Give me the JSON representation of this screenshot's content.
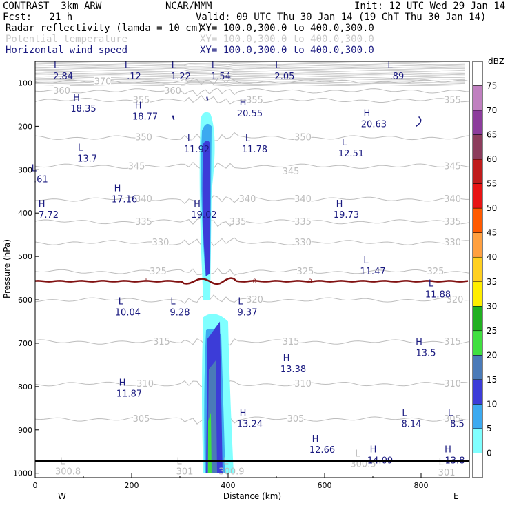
{
  "header": {
    "experiment": "CONTRAST  3km ARW",
    "center": "NCAR/MMM",
    "init": "Init: 12 UTC Wed 29 Jan 14",
    "fcst": "Fcst:   21 h",
    "valid": "Valid: 09 UTC Thu 30 Jan 14 (19 ChT Thu 30 Jan 14)",
    "fields": [
      {
        "name": "Radar reflectivity (lamda = 10 cm)",
        "xy": "XY= 100.0,300.0 to 400.0,300.0",
        "color": "#000000"
      },
      {
        "name": "Potential temperature",
        "xy": "XY= 100.0,300.0 to 400.0,300.0",
        "color": "#c8c8c8"
      },
      {
        "name": "Horizontal wind speed",
        "xy": "XY= 100.0,300.0 to 400.0,300.0",
        "color": "#1a1a80"
      }
    ]
  },
  "chart_data": {
    "type": "cross-section",
    "xlabel": "Distance (km)",
    "ylabel": "Pressure (hPa)",
    "xlim": [
      0,
      900
    ],
    "ylim": [
      1010,
      50
    ],
    "x_ticks": [
      "0",
      "200",
      "400",
      "600",
      "800"
    ],
    "y_ticks": [
      "100",
      "200",
      "300",
      "400",
      "500",
      "600",
      "700",
      "800",
      "900",
      "1000"
    ],
    "x_ends": {
      "left": "W",
      "right": "E"
    },
    "colorbar": {
      "unit": "dBZ",
      "levels": [
        "75",
        "70",
        "65",
        "60",
        "55",
        "50",
        "45",
        "40",
        "35",
        "30",
        "25",
        "20",
        "15",
        "10",
        "5",
        "0"
      ],
      "colors": [
        "#ffffff",
        "#c080c0",
        "#8c3c9c",
        "#8c3c5c",
        "#c01c1c",
        "#e81414",
        "#ff5a00",
        "#ffa040",
        "#ffd020",
        "#ffee00",
        "#20b020",
        "#40e040",
        "#4a7ab8",
        "#3c3cd8",
        "#3caaf0",
        "#80ffff",
        "#ffffff"
      ]
    },
    "theta_contours": [
      {
        "value": "370",
        "p": 97
      },
      {
        "value": "360",
        "p": 118
      },
      {
        "value": "355",
        "p": 140
      },
      {
        "value": "350",
        "p": 226
      },
      {
        "value": "345",
        "p": 292
      },
      {
        "value": "340",
        "p": 368
      },
      {
        "value": "335",
        "p": 420
      },
      {
        "value": "330",
        "p": 468
      },
      {
        "value": "325",
        "p": 535
      },
      {
        "value": "320",
        "p": 600
      },
      {
        "value": "315",
        "p": 697
      },
      {
        "value": "310",
        "p": 794
      },
      {
        "value": "305",
        "p": 875
      }
    ],
    "theta_labels": [
      {
        "text": "370",
        "x": 140,
        "p": 97
      },
      {
        "text": "360",
        "x": 55,
        "p": 118
      },
      {
        "text": "360",
        "x": 285,
        "p": 118
      },
      {
        "text": "355",
        "x": 220,
        "p": 140
      },
      {
        "text": "355",
        "x": 455,
        "p": 140
      },
      {
        "text": "355",
        "x": 865,
        "p": 140
      },
      {
        "text": "350",
        "x": 225,
        "p": 226
      },
      {
        "text": "350",
        "x": 555,
        "p": 226
      },
      {
        "text": "345",
        "x": 210,
        "p": 292
      },
      {
        "text": "345",
        "x": 530,
        "p": 304
      },
      {
        "text": "345",
        "x": 865,
        "p": 292
      },
      {
        "text": "340",
        "x": 225,
        "p": 368
      },
      {
        "text": "340",
        "x": 440,
        "p": 368
      },
      {
        "text": "340",
        "x": 555,
        "p": 368
      },
      {
        "text": "340",
        "x": 865,
        "p": 368
      },
      {
        "text": "335",
        "x": 225,
        "p": 420
      },
      {
        "text": "335",
        "x": 420,
        "p": 420
      },
      {
        "text": "335",
        "x": 555,
        "p": 420
      },
      {
        "text": "335",
        "x": 865,
        "p": 420
      },
      {
        "text": "330",
        "x": 260,
        "p": 468
      },
      {
        "text": "330",
        "x": 555,
        "p": 468
      },
      {
        "text": "330",
        "x": 865,
        "p": 468
      },
      {
        "text": "325",
        "x": 255,
        "p": 535
      },
      {
        "text": "325",
        "x": 560,
        "p": 535
      },
      {
        "text": "325",
        "x": 830,
        "p": 535
      },
      {
        "text": "320",
        "x": 455,
        "p": 600
      },
      {
        "text": "320",
        "x": 870,
        "p": 600
      },
      {
        "text": "315",
        "x": 262,
        "p": 697
      },
      {
        "text": "315",
        "x": 530,
        "p": 697
      },
      {
        "text": "315",
        "x": 865,
        "p": 697
      },
      {
        "text": "310",
        "x": 228,
        "p": 794
      },
      {
        "text": "310",
        "x": 555,
        "p": 794
      },
      {
        "text": "310",
        "x": 865,
        "p": 794
      },
      {
        "text": "305",
        "x": 220,
        "p": 875
      },
      {
        "text": "305",
        "x": 540,
        "p": 875
      },
      {
        "text": "305",
        "x": 865,
        "p": 875
      }
    ],
    "theta_extrema": [
      {
        "letter": "L",
        "value": "300.8",
        "x": 68,
        "p": 985
      },
      {
        "letter": "L",
        "value": "301",
        "x": 310,
        "p": 985
      },
      {
        "letter": "L",
        "value": "300.9",
        "x": 407,
        "p": 985
      },
      {
        "letter": "L",
        "value": "300.5",
        "x": 680,
        "p": 968
      },
      {
        "letter": "L",
        "value": "301",
        "x": 853,
        "p": 988
      }
    ],
    "wind_extrema": [
      {
        "letter": "L",
        "value": "2.84",
        "x": 58,
        "p": 72
      },
      {
        "letter": "L",
        "value": ".12",
        "x": 205,
        "p": 72
      },
      {
        "letter": "L",
        "value": "1.22",
        "x": 302,
        "p": 72
      },
      {
        "letter": "L",
        "value": "1.54",
        "x": 385,
        "p": 72
      },
      {
        "letter": "L",
        "value": "2.05",
        "x": 517,
        "p": 72
      },
      {
        "letter": "L",
        "value": ".89",
        "x": 750,
        "p": 72
      },
      {
        "letter": "H",
        "value": "18.35",
        "x": 100,
        "p": 147
      },
      {
        "letter": "H",
        "value": "18.77",
        "x": 228,
        "p": 165
      },
      {
        "letter": "H",
        "value": "20.55",
        "x": 445,
        "p": 158
      },
      {
        "letter": "H",
        "value": "20.63",
        "x": 702,
        "p": 183
      },
      {
        "letter": "L",
        "value": "11.92",
        "x": 335,
        "p": 241
      },
      {
        "letter": "L",
        "value": "11.78",
        "x": 455,
        "p": 241
      },
      {
        "letter": "L",
        "value": "12.51",
        "x": 655,
        "p": 250
      },
      {
        "letter": "L",
        "value": "13.7",
        "x": 108,
        "p": 262
      },
      {
        "letter": "L",
        "value": ".61",
        "x": 12,
        "p": 310
      },
      {
        "letter": "H",
        "value": "17.16",
        "x": 185,
        "p": 356
      },
      {
        "letter": "H",
        "value": "19.02",
        "x": 350,
        "p": 392
      },
      {
        "letter": "H",
        "value": "19.73",
        "x": 645,
        "p": 392
      },
      {
        "letter": "H",
        "value": "7.72",
        "x": 28,
        "p": 392
      },
      {
        "letter": "L",
        "value": "11.47",
        "x": 700,
        "p": 522
      },
      {
        "letter": "L",
        "value": "11.88",
        "x": 835,
        "p": 575
      },
      {
        "letter": "L",
        "value": "10.04",
        "x": 192,
        "p": 617
      },
      {
        "letter": "L",
        "value": "9.28",
        "x": 300,
        "p": 617
      },
      {
        "letter": "L",
        "value": "9.37",
        "x": 440,
        "p": 617
      },
      {
        "letter": "H",
        "value": "13.5",
        "x": 810,
        "p": 710
      },
      {
        "letter": "H",
        "value": "13.38",
        "x": 535,
        "p": 748
      },
      {
        "letter": "H",
        "value": "11.87",
        "x": 195,
        "p": 804
      },
      {
        "letter": "H",
        "value": "13.24",
        "x": 445,
        "p": 874
      },
      {
        "letter": "L",
        "value": "8.14",
        "x": 780,
        "p": 874
      },
      {
        "letter": "L",
        "value": "8.5",
        "x": 875,
        "p": 874
      },
      {
        "letter": "H",
        "value": "12.66",
        "x": 595,
        "p": 934
      },
      {
        "letter": "H",
        "value": "14.09",
        "x": 715,
        "p": 958
      },
      {
        "letter": "H",
        "value": "13.8",
        "x": 870,
        "p": 958
      }
    ],
    "zero_wind_line": {
      "label": "0",
      "p": 557,
      "label_x": [
        230,
        455,
        570
      ]
    },
    "reflectivity_column": {
      "x_center": 360,
      "p_top": 170,
      "p_bottom": 1000
    }
  }
}
